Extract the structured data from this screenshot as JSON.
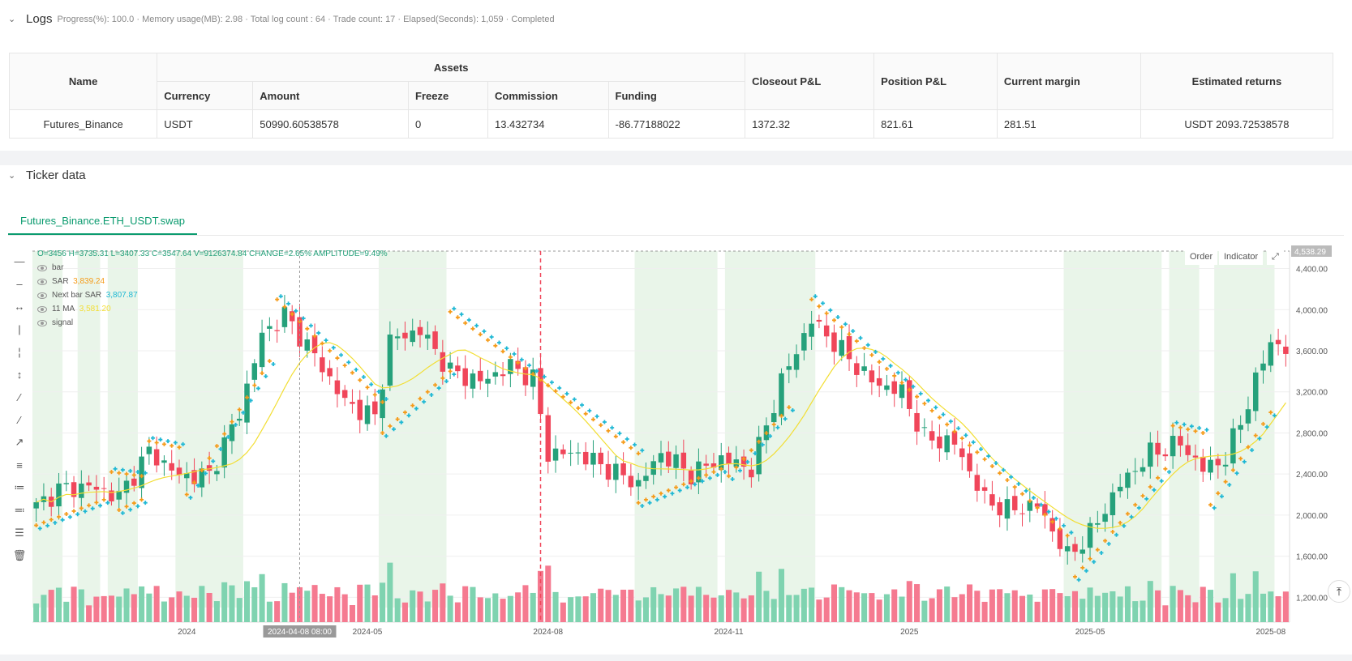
{
  "logs": {
    "title": "Logs",
    "status": "Progress(%): 100.0 · Memory usage(MB): 2.98 · Total log count : 64 · Trade count:  17 · Elapsed(Seconds): 1,059 · Completed",
    "table": {
      "headers": {
        "name": "Name",
        "assets": "Assets",
        "currency": "Currency",
        "amount": "Amount",
        "freeze": "Freeze",
        "commission": "Commission",
        "funding": "Funding",
        "closeout": "Closeout P&L",
        "position": "Position P&L",
        "margin": "Current margin",
        "returns": "Estimated returns"
      },
      "row": {
        "name": "Futures_Binance",
        "currency": "USDT",
        "amount": "50990.60538578",
        "freeze": "0",
        "commission": "13.432734",
        "funding": "-86.77188022",
        "closeout": "1372.32",
        "position": "821.61",
        "margin": "281.51",
        "returns": "USDT 2093.72538578"
      }
    }
  },
  "ticker": {
    "title": "Ticker data",
    "tab": "Futures_Binance.ETH_USDT.swap",
    "legend": {
      "ohlc": "O=3456 H=3735.31 L=3407.33 C=3547.64 V=9126374.84 CHANGE=2.65% AMPLITUDE=9.49%",
      "bar": "bar",
      "sar_label": "SAR",
      "sar_value": "3,839.24",
      "next_sar_label": "Next bar SAR",
      "next_sar_value": "3,807.87",
      "ma_label": "11 MA",
      "ma_value": "3,581.20",
      "signal": "signal"
    },
    "buttons": {
      "order": "Order",
      "indicator": "Indicator"
    },
    "crosshair_time": "2024-04-08 08:00",
    "price_tag": "4,538.29",
    "scroll_top": "⤒"
  },
  "colors": {
    "up": "#26a17b",
    "down": "#f0465a",
    "sar_orange": "#f59b1a",
    "sar_cyan": "#1fb8d4",
    "ma": "#f2de33",
    "bg_zone": "#e9f5e9",
    "vol_up": "#7fd3b0",
    "vol_down": "#f57a90"
  },
  "chart_data": {
    "type": "candlestick",
    "title": "Futures_Binance.ETH_USDT.swap",
    "y_ticks": [
      1200,
      1600,
      2000,
      2400,
      2800,
      3200,
      3600,
      4000,
      4400
    ],
    "y_tick_labels": [
      "1,200.00",
      "1,600.00",
      "2,000.00",
      "2,400.00",
      "2,800.00",
      "3,200.00",
      "3,600.00",
      "4,000.00",
      "4,400.00"
    ],
    "ylim": [
      1100,
      4570
    ],
    "x_ticks": [
      {
        "index": 20,
        "label": "2024"
      },
      {
        "index": 44,
        "label": "2024-05"
      },
      {
        "index": 68,
        "label": "2024-08"
      },
      {
        "index": 92,
        "label": "2024-11"
      },
      {
        "index": 116,
        "label": "2025"
      },
      {
        "index": 140,
        "label": "2025-05"
      },
      {
        "index": 164,
        "label": "2025-08"
      }
    ],
    "crosshair_index": 35,
    "marker_index": 67,
    "anchors": [
      [
        0,
        2080
      ],
      [
        3,
        2250
      ],
      [
        7,
        2280
      ],
      [
        11,
        2180
      ],
      [
        15,
        2620
      ],
      [
        19,
        2380
      ],
      [
        23,
        2390
      ],
      [
        27,
        3000
      ],
      [
        30,
        3750
      ],
      [
        33,
        3950
      ],
      [
        37,
        3550
      ],
      [
        41,
        3100
      ],
      [
        45,
        2950
      ],
      [
        47,
        3700
      ],
      [
        51,
        3800
      ],
      [
        55,
        3400
      ],
      [
        59,
        3300
      ],
      [
        63,
        3450
      ],
      [
        66,
        3330
      ],
      [
        68,
        2600
      ],
      [
        72,
        2600
      ],
      [
        76,
        2450
      ],
      [
        80,
        2300
      ],
      [
        83,
        2600
      ],
      [
        87,
        2400
      ],
      [
        91,
        2550
      ],
      [
        95,
        2450
      ],
      [
        99,
        3300
      ],
      [
        103,
        3900
      ],
      [
        107,
        3600
      ],
      [
        111,
        3300
      ],
      [
        115,
        3200
      ],
      [
        118,
        2750
      ],
      [
        122,
        2700
      ],
      [
        126,
        2150
      ],
      [
        129,
        2050
      ],
      [
        133,
        2100
      ],
      [
        137,
        1600
      ],
      [
        140,
        1820
      ],
      [
        144,
        2300
      ],
      [
        148,
        2600
      ],
      [
        152,
        2700
      ],
      [
        155,
        2450
      ],
      [
        158,
        2550
      ],
      [
        161,
        3100
      ],
      [
        164,
        3700
      ],
      [
        166,
        3600
      ]
    ],
    "sar_segments": [
      {
        "from": 0,
        "to": 9,
        "side": "below",
        "start": 1900,
        "end": 2150
      },
      {
        "from": 10,
        "to": 14,
        "side": "above",
        "start": 2420,
        "end": 2380
      },
      {
        "from": 11,
        "to": 14,
        "side": "below",
        "start": 2050,
        "end": 2150
      },
      {
        "from": 15,
        "to": 19,
        "side": "above",
        "start": 2720,
        "end": 2660
      },
      {
        "from": 20,
        "to": 31,
        "side": "below",
        "start": 2200,
        "end": 3500
      },
      {
        "from": 32,
        "to": 46,
        "side": "above",
        "start": 4100,
        "end": 3100
      },
      {
        "from": 46,
        "to": 55,
        "side": "below",
        "start": 2800,
        "end": 3400
      },
      {
        "from": 55,
        "to": 80,
        "side": "above",
        "start": 3980,
        "end": 2600
      },
      {
        "from": 80,
        "to": 91,
        "side": "below",
        "start": 2120,
        "end": 2450
      },
      {
        "from": 92,
        "to": 100,
        "side": "below",
        "start": 2380,
        "end": 3050
      },
      {
        "from": 103,
        "to": 137,
        "side": "above",
        "start": 4100,
        "end": 1800
      },
      {
        "from": 138,
        "to": 150,
        "side": "below",
        "start": 1400,
        "end": 2450
      },
      {
        "from": 151,
        "to": 155,
        "side": "above",
        "start": 2870,
        "end": 2800
      },
      {
        "from": 156,
        "to": 164,
        "side": "below",
        "start": 2100,
        "end": 3000
      }
    ],
    "green_zones": [
      [
        0,
        3
      ],
      [
        6,
        8
      ],
      [
        10,
        13
      ],
      [
        19,
        27
      ],
      [
        46,
        54
      ],
      [
        80,
        90
      ],
      [
        92,
        103
      ],
      [
        137,
        149
      ],
      [
        151,
        154
      ],
      [
        157,
        164
      ]
    ],
    "series": [
      {
        "name": "bar",
        "type": "candlestick"
      },
      {
        "name": "SAR",
        "type": "markers"
      },
      {
        "name": "Next bar SAR",
        "type": "markers"
      },
      {
        "name": "11 MA",
        "type": "line"
      },
      {
        "name": "volume",
        "type": "bar"
      }
    ]
  }
}
